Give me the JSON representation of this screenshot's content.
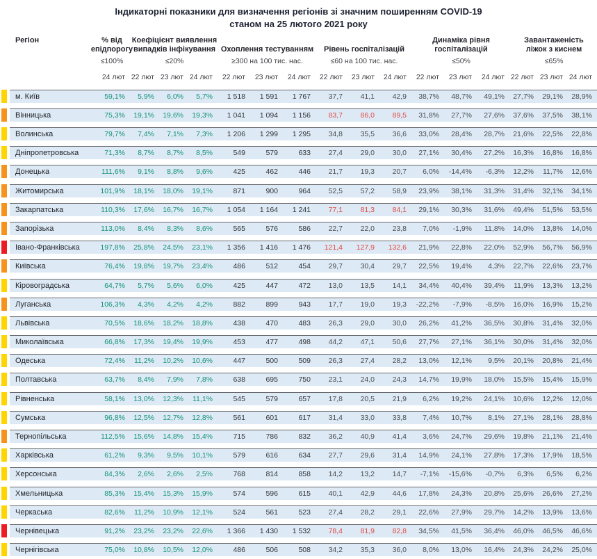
{
  "title": {
    "line1": "Індикаторні показники для визначення регіонів зі значним поширенням COVID-19",
    "line2": "станом на 25 лютого 2021 року"
  },
  "colors": {
    "marker_yellow": "#FFD500",
    "marker_orange": "#F6921E",
    "marker_red": "#EC1C24",
    "value_ok": "#16917C",
    "value_alert": "#E04A45",
    "row_bg": "#DDEAF5"
  },
  "table": {
    "region_header": "Регіон",
    "groups": [
      {
        "label": "% від\nепідпорогу",
        "threshold": "≤100%",
        "dates": [
          "24 лют"
        ]
      },
      {
        "label": "Коефіцієнт виявлення\nвипадків інфікування",
        "threshold": "≤20%",
        "dates": [
          "22 лют",
          "23 лют",
          "24 лют"
        ]
      },
      {
        "label": "Охоплення тестуванням",
        "threshold": "≥300 на 100 тис. нас.",
        "dates": [
          "22 лют",
          "23 лют",
          "24 лют"
        ]
      },
      {
        "label": "Рівень госпіталізацій",
        "threshold": "≤60 на 100 тис. нас.",
        "dates": [
          "22 лют",
          "23 лют",
          "24 лют"
        ]
      },
      {
        "label": "Динаміка рівня\nгоспіталізацій",
        "threshold": "≤50%",
        "dates": [
          "22 лют",
          "23 лют",
          "24 лют"
        ]
      },
      {
        "label": "Завантаженість\nліжок з киснем",
        "threshold": "≤65%",
        "dates": [
          "22 лют",
          "23 лют",
          "24 лют"
        ]
      }
    ],
    "rows": [
      {
        "region": "м. Київ",
        "marker": "yellow",
        "epid": "59,1%",
        "detection": [
          "5,9%",
          "6,0%",
          "5,7%"
        ],
        "testing": [
          "1 518",
          "1 591",
          "1 767"
        ],
        "hospitalization": [
          "37,7",
          "41,1",
          "42,9"
        ],
        "hosp_alert": false,
        "dynamics": [
          "38,7%",
          "48,7%",
          "49,1%"
        ],
        "oxygen_beds": [
          "27,7%",
          "29,1%",
          "28,9%"
        ]
      },
      {
        "region": "Вінницька",
        "marker": "orange",
        "epid": "75,3%",
        "detection": [
          "19,1%",
          "19,6%",
          "19,3%"
        ],
        "testing": [
          "1 041",
          "1 094",
          "1 156"
        ],
        "hospitalization": [
          "83,7",
          "86,0",
          "89,5"
        ],
        "hosp_alert": true,
        "dynamics": [
          "31,8%",
          "27,7%",
          "27,6%"
        ],
        "oxygen_beds": [
          "37,6%",
          "37,5%",
          "38,1%"
        ]
      },
      {
        "region": "Волинська",
        "marker": "yellow",
        "epid": "79,7%",
        "detection": [
          "7,4%",
          "7,1%",
          "7,3%"
        ],
        "testing": [
          "1 206",
          "1 299",
          "1 295"
        ],
        "hospitalization": [
          "34,8",
          "35,5",
          "36,6"
        ],
        "hosp_alert": false,
        "dynamics": [
          "33,0%",
          "28,4%",
          "28,7%"
        ],
        "oxygen_beds": [
          "21,6%",
          "22,5%",
          "22,8%"
        ]
      },
      {
        "region": "Дніпропетровська",
        "marker": "yellow",
        "epid": "71,3%",
        "detection": [
          "8,7%",
          "8,7%",
          "8,5%"
        ],
        "testing": [
          "549",
          "579",
          "633"
        ],
        "hospitalization": [
          "27,4",
          "29,0",
          "30,0"
        ],
        "hosp_alert": false,
        "dynamics": [
          "27,1%",
          "30,4%",
          "27,2%"
        ],
        "oxygen_beds": [
          "16,3%",
          "16,8%",
          "16,8%"
        ]
      },
      {
        "region": "Донецька",
        "marker": "orange",
        "epid": "111,6%",
        "detection": [
          "9,1%",
          "8,8%",
          "9,6%"
        ],
        "testing": [
          "425",
          "462",
          "446"
        ],
        "hospitalization": [
          "21,7",
          "19,3",
          "20,7"
        ],
        "hosp_alert": false,
        "dynamics": [
          "6,0%",
          "-14,4%",
          "-6,3%"
        ],
        "oxygen_beds": [
          "12,2%",
          "11,7%",
          "12,6%"
        ]
      },
      {
        "region": "Житомирська",
        "marker": "orange",
        "epid": "101,9%",
        "detection": [
          "18,1%",
          "18,0%",
          "19,1%"
        ],
        "testing": [
          "871",
          "900",
          "964"
        ],
        "hospitalization": [
          "52,5",
          "57,2",
          "58,9"
        ],
        "hosp_alert": false,
        "dynamics": [
          "23,9%",
          "38,1%",
          "31,3%"
        ],
        "oxygen_beds": [
          "31,4%",
          "32,1%",
          "34,1%"
        ]
      },
      {
        "region": "Закарпатська",
        "marker": "orange",
        "epid": "110,3%",
        "detection": [
          "17,6%",
          "16,7%",
          "16,7%"
        ],
        "testing": [
          "1 054",
          "1 164",
          "1 241"
        ],
        "hospitalization": [
          "77,1",
          "81,3",
          "84,1"
        ],
        "hosp_alert": true,
        "dynamics": [
          "29,1%",
          "30,3%",
          "31,6%"
        ],
        "oxygen_beds": [
          "49,4%",
          "51,5%",
          "53,5%"
        ]
      },
      {
        "region": "Запорізька",
        "marker": "orange",
        "epid": "113,0%",
        "detection": [
          "8,4%",
          "8,3%",
          "8,6%"
        ],
        "testing": [
          "565",
          "576",
          "586"
        ],
        "hospitalization": [
          "22,7",
          "22,0",
          "23,8"
        ],
        "hosp_alert": false,
        "dynamics": [
          "7,0%",
          "-1,9%",
          "11,8%"
        ],
        "oxygen_beds": [
          "14,0%",
          "13,8%",
          "14,0%"
        ]
      },
      {
        "region": "Івано-Франківська",
        "marker": "red",
        "epid": "197,8%",
        "detection": [
          "25,8%",
          "24,5%",
          "23,1%"
        ],
        "testing": [
          "1 356",
          "1 416",
          "1 476"
        ],
        "hospitalization": [
          "121,4",
          "127,9",
          "132,6"
        ],
        "hosp_alert": true,
        "dynamics": [
          "21,9%",
          "22,8%",
          "22,0%"
        ],
        "oxygen_beds": [
          "52,9%",
          "56,7%",
          "56,9%"
        ]
      },
      {
        "region": "Київська",
        "marker": "orange",
        "epid": "76,4%",
        "detection": [
          "19,8%",
          "19,7%",
          "23,4%"
        ],
        "testing": [
          "486",
          "512",
          "454"
        ],
        "hospitalization": [
          "29,7",
          "30,4",
          "29,7"
        ],
        "hosp_alert": false,
        "dynamics": [
          "22,5%",
          "19,4%",
          "4,3%"
        ],
        "oxygen_beds": [
          "22,7%",
          "22,6%",
          "23,7%"
        ]
      },
      {
        "region": "Кіровоградська",
        "marker": "yellow",
        "epid": "64,7%",
        "detection": [
          "5,7%",
          "5,6%",
          "6,0%"
        ],
        "testing": [
          "425",
          "447",
          "472"
        ],
        "hospitalization": [
          "13,0",
          "13,5",
          "14,1"
        ],
        "hosp_alert": false,
        "dynamics": [
          "34,4%",
          "40,4%",
          "39,4%"
        ],
        "oxygen_beds": [
          "11,9%",
          "13,3%",
          "13,2%"
        ]
      },
      {
        "region": "Луганська",
        "marker": "orange",
        "epid": "106,3%",
        "detection": [
          "4,3%",
          "4,2%",
          "4,2%"
        ],
        "testing": [
          "882",
          "899",
          "943"
        ],
        "hospitalization": [
          "17,7",
          "19,0",
          "19,3"
        ],
        "hosp_alert": false,
        "dynamics": [
          "-22,2%",
          "-7,9%",
          "-8,5%"
        ],
        "oxygen_beds": [
          "16,0%",
          "16,9%",
          "15,2%"
        ]
      },
      {
        "region": "Львівська",
        "marker": "yellow",
        "epid": "70,5%",
        "detection": [
          "18,6%",
          "18,2%",
          "18,8%"
        ],
        "testing": [
          "438",
          "470",
          "483"
        ],
        "hospitalization": [
          "26,3",
          "29,0",
          "30,0"
        ],
        "hosp_alert": false,
        "dynamics": [
          "26,2%",
          "41,2%",
          "36,5%"
        ],
        "oxygen_beds": [
          "30,8%",
          "31,4%",
          "32,0%"
        ]
      },
      {
        "region": "Миколаївська",
        "marker": "yellow",
        "epid": "66,8%",
        "detection": [
          "17,3%",
          "19,4%",
          "19,9%"
        ],
        "testing": [
          "453",
          "477",
          "498"
        ],
        "hospitalization": [
          "44,2",
          "47,1",
          "50,6"
        ],
        "hosp_alert": false,
        "dynamics": [
          "27,7%",
          "27,1%",
          "36,1%"
        ],
        "oxygen_beds": [
          "30,0%",
          "31,4%",
          "32,0%"
        ]
      },
      {
        "region": "Одеська",
        "marker": "yellow",
        "epid": "72,4%",
        "detection": [
          "11,2%",
          "10,2%",
          "10,6%"
        ],
        "testing": [
          "447",
          "500",
          "509"
        ],
        "hospitalization": [
          "26,3",
          "27,4",
          "28,2"
        ],
        "hosp_alert": false,
        "dynamics": [
          "13,0%",
          "12,1%",
          "9,5%"
        ],
        "oxygen_beds": [
          "20,1%",
          "20,8%",
          "21,4%"
        ]
      },
      {
        "region": "Полтавська",
        "marker": "yellow",
        "epid": "63,7%",
        "detection": [
          "8,4%",
          "7,9%",
          "7,8%"
        ],
        "testing": [
          "638",
          "695",
          "750"
        ],
        "hospitalization": [
          "23,1",
          "24,0",
          "24,3"
        ],
        "hosp_alert": false,
        "dynamics": [
          "14,7%",
          "19,9%",
          "18,0%"
        ],
        "oxygen_beds": [
          "15,5%",
          "15,4%",
          "15,9%"
        ]
      },
      {
        "region": "Рівненська",
        "marker": "yellow",
        "epid": "58,1%",
        "detection": [
          "13,0%",
          "12,3%",
          "11,1%"
        ],
        "testing": [
          "545",
          "579",
          "657"
        ],
        "hospitalization": [
          "17,8",
          "20,5",
          "21,9"
        ],
        "hosp_alert": false,
        "dynamics": [
          "6,2%",
          "19,2%",
          "24,1%"
        ],
        "oxygen_beds": [
          "10,6%",
          "12,2%",
          "12,0%"
        ]
      },
      {
        "region": "Сумська",
        "marker": "yellow",
        "epid": "96,8%",
        "detection": [
          "12,5%",
          "12,7%",
          "12,8%"
        ],
        "testing": [
          "561",
          "601",
          "617"
        ],
        "hospitalization": [
          "31,4",
          "33,0",
          "33,8"
        ],
        "hosp_alert": false,
        "dynamics": [
          "7,4%",
          "10,7%",
          "8,1%"
        ],
        "oxygen_beds": [
          "27,1%",
          "28,1%",
          "28,8%"
        ]
      },
      {
        "region": "Тернопільська",
        "marker": "orange",
        "epid": "112,5%",
        "detection": [
          "15,6%",
          "14,8%",
          "15,4%"
        ],
        "testing": [
          "715",
          "786",
          "832"
        ],
        "hospitalization": [
          "36,2",
          "40,9",
          "41,4"
        ],
        "hosp_alert": false,
        "dynamics": [
          "3,6%",
          "24,7%",
          "29,6%"
        ],
        "oxygen_beds": [
          "19,8%",
          "21,1%",
          "21,4%"
        ]
      },
      {
        "region": "Харківська",
        "marker": "yellow",
        "epid": "61,2%",
        "detection": [
          "9,3%",
          "9,5%",
          "10,1%"
        ],
        "testing": [
          "579",
          "616",
          "634"
        ],
        "hospitalization": [
          "27,7",
          "29,6",
          "31,4"
        ],
        "hosp_alert": false,
        "dynamics": [
          "14,9%",
          "24,1%",
          "27,8%"
        ],
        "oxygen_beds": [
          "17,3%",
          "17,9%",
          "18,5%"
        ]
      },
      {
        "region": "Херсонська",
        "marker": "yellow",
        "epid": "84,3%",
        "detection": [
          "2,6%",
          "2,6%",
          "2,5%"
        ],
        "testing": [
          "768",
          "814",
          "858"
        ],
        "hospitalization": [
          "14,2",
          "13,2",
          "14,7"
        ],
        "hosp_alert": false,
        "dynamics": [
          "-7,1%",
          "-15,6%",
          "-0,7%"
        ],
        "oxygen_beds": [
          "6,3%",
          "6,5%",
          "6,2%"
        ]
      },
      {
        "region": "Хмельницька",
        "marker": "yellow",
        "epid": "85,3%",
        "detection": [
          "15,4%",
          "15,3%",
          "15,9%"
        ],
        "testing": [
          "574",
          "596",
          "615"
        ],
        "hospitalization": [
          "40,1",
          "42,9",
          "44,6"
        ],
        "hosp_alert": false,
        "dynamics": [
          "17,8%",
          "24,3%",
          "20,8%"
        ],
        "oxygen_beds": [
          "25,6%",
          "26,6%",
          "27,2%"
        ]
      },
      {
        "region": "Черкаська",
        "marker": "yellow",
        "epid": "82,6%",
        "detection": [
          "11,2%",
          "10,9%",
          "12,1%"
        ],
        "testing": [
          "524",
          "561",
          "523"
        ],
        "hospitalization": [
          "27,4",
          "28,2",
          "29,1"
        ],
        "hosp_alert": false,
        "dynamics": [
          "22,6%",
          "27,9%",
          "29,7%"
        ],
        "oxygen_beds": [
          "14,2%",
          "13,9%",
          "13,6%"
        ]
      },
      {
        "region": "Чернівецька",
        "marker": "red",
        "epid": "91,2%",
        "detection": [
          "23,2%",
          "23,2%",
          "22,6%"
        ],
        "testing": [
          "1 366",
          "1 430",
          "1 532"
        ],
        "hospitalization": [
          "78,4",
          "81,9",
          "82,8"
        ],
        "hosp_alert": true,
        "dynamics": [
          "34,5%",
          "41,5%",
          "36,4%"
        ],
        "oxygen_beds": [
          "46,0%",
          "46,5%",
          "46,6%"
        ]
      },
      {
        "region": "Чернігівська",
        "marker": "yellow",
        "epid": "75,0%",
        "detection": [
          "10,8%",
          "10,5%",
          "12,0%"
        ],
        "testing": [
          "486",
          "506",
          "508"
        ],
        "hospitalization": [
          "34,2",
          "35,3",
          "36,0"
        ],
        "hosp_alert": false,
        "dynamics": [
          "8,0%",
          "13,0%",
          "16,4%"
        ],
        "oxygen_beds": [
          "24,3%",
          "24,2%",
          "25,0%"
        ]
      }
    ]
  }
}
